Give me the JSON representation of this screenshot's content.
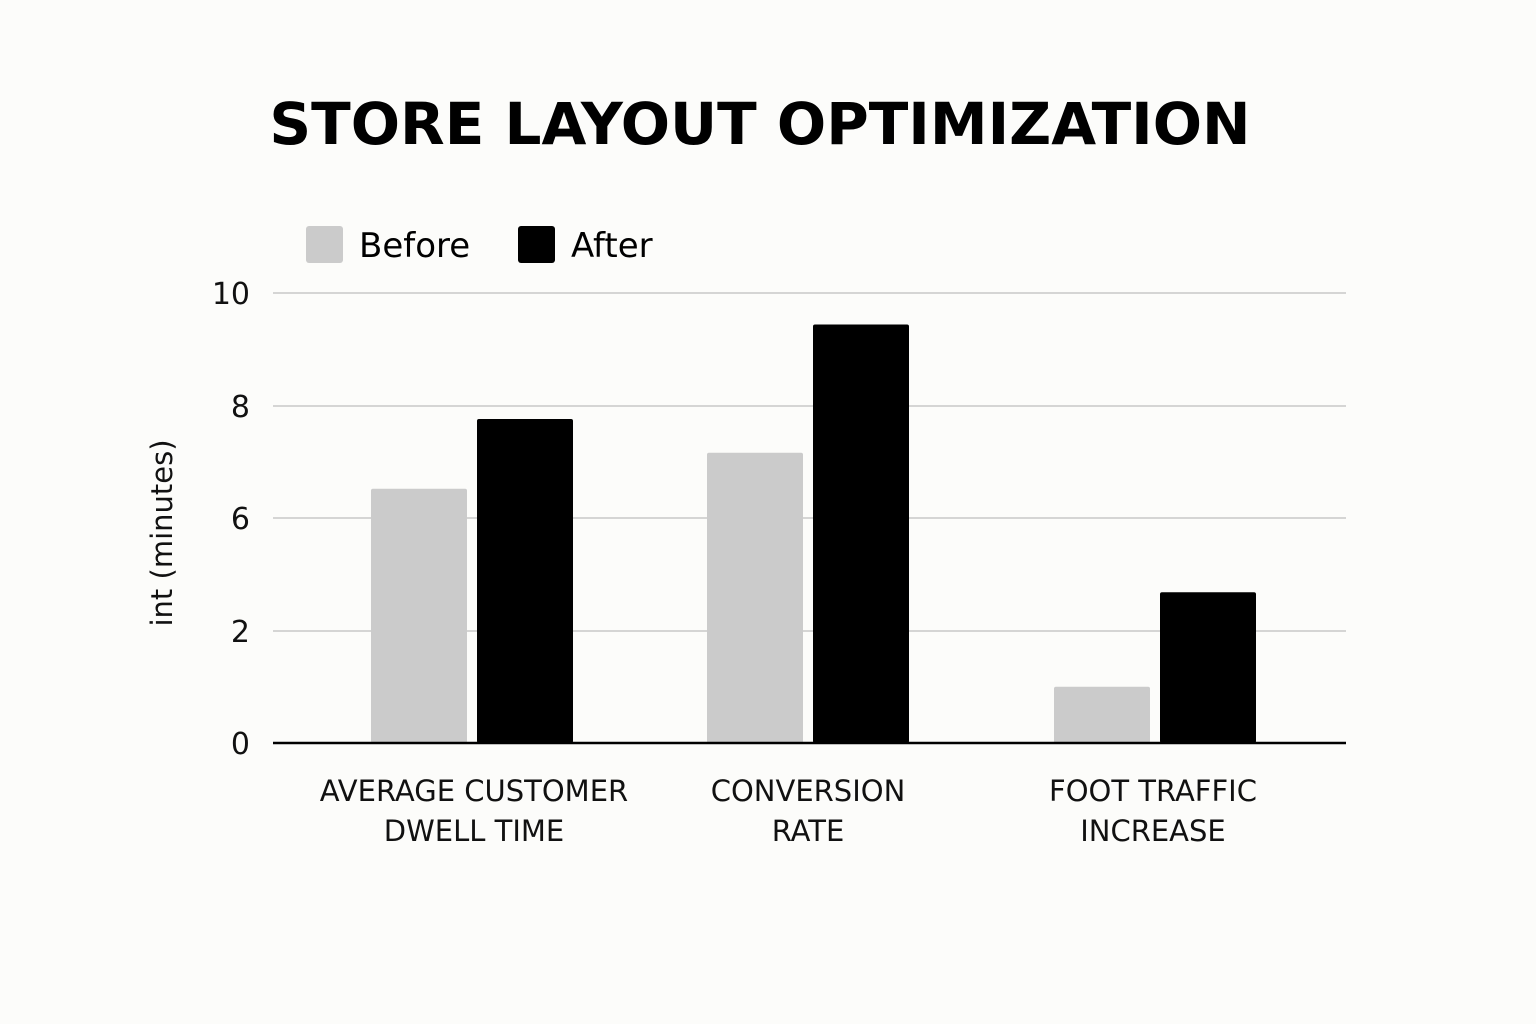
{
  "chart_data": {
    "type": "bar",
    "title": "STORE LAYOUT OPTIMIZATION",
    "xlabel": "",
    "ylabel": "int (minutes)",
    "categories": [
      [
        "AVERAGE CUSTOMER",
        "DWELL TIME"
      ],
      [
        "CONVERSION",
        "RATE"
      ],
      [
        "FOOT TRAFFIC",
        "INCREASE"
      ]
    ],
    "y_tick_labels": [
      "10",
      "8",
      "6",
      "2",
      "0"
    ],
    "ylim": [
      0,
      10
    ],
    "grid": true,
    "legend_position": "top-left",
    "series": [
      {
        "name": "Before",
        "color": "#cbcbcb",
        "values": [
          5.65,
          6.45,
          1.25
        ]
      },
      {
        "name": "After",
        "color": "#000000",
        "values": [
          7.2,
          9.3,
          3.35
        ]
      }
    ]
  }
}
